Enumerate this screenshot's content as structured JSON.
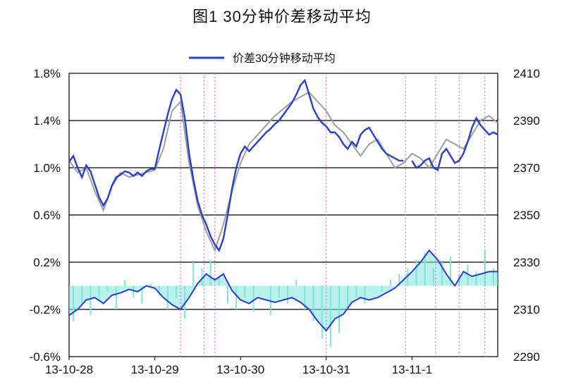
{
  "title": "图1 30分钟价差移动平均",
  "legend": {
    "label": "价差30分钟移动平均",
    "position": "top-center"
  },
  "colors": {
    "ma_line": "#2a3fcf",
    "price_line": "#9aa0a0",
    "spread_bar": "#7fe6dc",
    "band_fill": "#7fe6dc",
    "vline": "#e070e0",
    "grid": "#000000"
  },
  "chart_data": {
    "type": "line",
    "title": "图1 30分钟价差移动平均",
    "xlabel": "",
    "ylabel_left": "",
    "ylabel_right": "",
    "grid": true,
    "left_axis": {
      "ylim": [
        -0.6,
        1.8
      ],
      "ticks": [
        "1.8%",
        "1.4%",
        "1.0%",
        "0.6%",
        "0.2%",
        "-0.2%",
        "-0.6%"
      ],
      "tick_values": [
        1.8,
        1.4,
        1.0,
        0.6,
        0.2,
        -0.2,
        -0.6
      ]
    },
    "right_axis": {
      "ylim": [
        2290,
        2410
      ],
      "ticks": [
        "2410",
        "2390",
        "2370",
        "2350",
        "2330",
        "2310",
        "2290"
      ],
      "tick_values": [
        2410,
        2390,
        2370,
        2350,
        2330,
        2310,
        2290
      ]
    },
    "x_ticks": [
      "13-10-28",
      "13-10-29",
      "13-10-30",
      "13-10-31",
      "13-11-1"
    ],
    "x_tick_positions": [
      0,
      40,
      80,
      120,
      160
    ],
    "x_range": [
      0,
      200
    ],
    "vertical_markers": [
      52,
      63,
      68,
      120,
      157,
      171,
      182,
      194
    ],
    "series": [
      {
        "name": "价差30分钟移动平均",
        "role": "upper",
        "x": [
          0,
          2,
          4,
          6,
          8,
          10,
          12,
          14,
          16,
          18,
          20,
          22,
          24,
          26,
          28,
          30,
          32,
          34,
          36,
          38,
          40,
          42,
          44,
          46,
          48,
          50,
          52,
          54,
          56,
          58,
          60,
          62,
          64,
          66,
          68,
          70,
          72,
          74,
          76,
          78,
          80,
          82,
          84,
          86,
          88,
          90,
          92,
          94,
          96,
          98,
          100,
          102,
          104,
          106,
          108,
          110,
          112,
          114,
          116,
          118,
          120,
          122,
          124,
          126,
          128,
          130,
          132,
          134,
          136,
          138,
          140,
          142,
          144,
          146,
          148,
          150,
          152,
          154,
          156,
          158,
          160,
          162,
          164,
          166,
          168,
          170,
          172,
          174,
          176,
          178,
          180,
          182,
          184,
          186,
          188,
          190,
          192,
          194,
          196,
          198,
          200
        ],
        "values": [
          1.05,
          1.1,
          1.0,
          0.92,
          1.02,
          0.97,
          0.86,
          0.75,
          0.68,
          0.74,
          0.85,
          0.92,
          0.94,
          0.97,
          0.96,
          0.93,
          0.96,
          0.93,
          0.97,
          0.99,
          0.99,
          1.15,
          1.3,
          1.45,
          1.58,
          1.66,
          1.62,
          1.42,
          1.12,
          0.9,
          0.72,
          0.6,
          0.52,
          0.42,
          0.35,
          0.3,
          0.4,
          0.6,
          0.82,
          1.0,
          1.12,
          1.18,
          1.14,
          1.18,
          1.22,
          1.26,
          1.3,
          1.33,
          1.37,
          1.4,
          1.45,
          1.5,
          1.55,
          1.62,
          1.7,
          1.74,
          1.62,
          1.5,
          1.43,
          1.38,
          1.35,
          1.3,
          1.3,
          1.26,
          1.2,
          1.16,
          1.22,
          1.18,
          1.28,
          1.32,
          1.34,
          1.28,
          1.22,
          1.16,
          1.12,
          1.1,
          1.08,
          1.06,
          1.06,
          null,
          1.06,
          1.0,
          1.02,
          1.06,
          1.08,
          1.0,
          0.98,
          1.12,
          1.16,
          1.1,
          1.04,
          1.06,
          1.12,
          1.22,
          1.34,
          1.42,
          1.36,
          1.32,
          1.28,
          1.3,
          1.28
        ]
      },
      {
        "name": "",
        "role": "price",
        "x": [
          0,
          4,
          8,
          12,
          16,
          20,
          24,
          28,
          32,
          36,
          40,
          44,
          48,
          52,
          56,
          60,
          64,
          68,
          72,
          76,
          80,
          84,
          88,
          92,
          96,
          100,
          104,
          108,
          112,
          116,
          120,
          124,
          128,
          132,
          136,
          140,
          144,
          148,
          152,
          156,
          160,
          164,
          168,
          172,
          176,
          180,
          184,
          188,
          192,
          196,
          200
        ],
        "values": [
          2373,
          2368,
          2370,
          2360,
          2352,
          2362,
          2368,
          2366,
          2367,
          2368,
          2369,
          2378,
          2394,
          2398,
          2372,
          2354,
          2343,
          2335,
          2346,
          2360,
          2372,
          2380,
          2384,
          2388,
          2392,
          2395,
          2398,
          2400,
          2402,
          2398,
          2394,
          2388,
          2385,
          2380,
          2375,
          2380,
          2382,
          2376,
          2370,
          2372,
          2376,
          2374,
          2370,
          2376,
          2382,
          2380,
          2378,
          2384,
          2390,
          2392,
          2389
        ]
      },
      {
        "name": "",
        "role": "lower",
        "x": [
          0,
          4,
          8,
          12,
          16,
          20,
          24,
          28,
          32,
          36,
          40,
          44,
          48,
          52,
          56,
          60,
          64,
          68,
          72,
          76,
          80,
          84,
          88,
          92,
          96,
          100,
          104,
          108,
          112,
          116,
          120,
          124,
          128,
          132,
          136,
          140,
          144,
          148,
          152,
          156,
          160,
          164,
          168,
          172,
          176,
          180,
          184,
          188,
          192,
          196,
          200
        ],
        "values": [
          -0.25,
          -0.2,
          -0.12,
          -0.1,
          -0.15,
          -0.08,
          -0.06,
          -0.03,
          -0.05,
          0.0,
          -0.02,
          -0.1,
          -0.16,
          -0.2,
          -0.1,
          0.02,
          0.1,
          0.05,
          0.1,
          -0.04,
          -0.12,
          -0.15,
          -0.1,
          -0.12,
          -0.14,
          -0.12,
          -0.1,
          -0.14,
          -0.2,
          -0.3,
          -0.38,
          -0.28,
          -0.24,
          -0.14,
          -0.1,
          -0.12,
          -0.1,
          -0.06,
          -0.02,
          0.05,
          0.12,
          0.2,
          0.3,
          0.22,
          0.1,
          0.0,
          0.12,
          0.08,
          0.1,
          0.12,
          0.12
        ]
      },
      {
        "name": "",
        "role": "spread_bars",
        "x": [
          2,
          6,
          10,
          14,
          18,
          22,
          26,
          30,
          34,
          38,
          42,
          46,
          50,
          54,
          58,
          62,
          66,
          70,
          74,
          78,
          82,
          86,
          90,
          94,
          98,
          102,
          106,
          110,
          114,
          118,
          122,
          126,
          130,
          134,
          138,
          142,
          146,
          150,
          154,
          158,
          162,
          166,
          170,
          174,
          178,
          182,
          186,
          190,
          194,
          198
        ],
        "values": [
          -0.3,
          -0.15,
          -0.25,
          -0.1,
          -0.05,
          -0.2,
          0.05,
          -0.1,
          -0.15,
          0.02,
          -0.08,
          -0.2,
          -0.1,
          -0.28,
          0.2,
          0.15,
          0.22,
          0.08,
          -0.15,
          -0.2,
          -0.1,
          -0.22,
          0.0,
          -0.25,
          -0.1,
          -0.15,
          0.05,
          -0.2,
          -0.3,
          -0.45,
          -0.52,
          -0.4,
          -0.2,
          -0.1,
          -0.15,
          0.0,
          -0.05,
          0.05,
          0.1,
          0.15,
          0.22,
          0.28,
          0.15,
          0.2,
          0.25,
          0.1,
          0.18,
          0.12,
          0.3,
          0.15
        ]
      }
    ]
  }
}
